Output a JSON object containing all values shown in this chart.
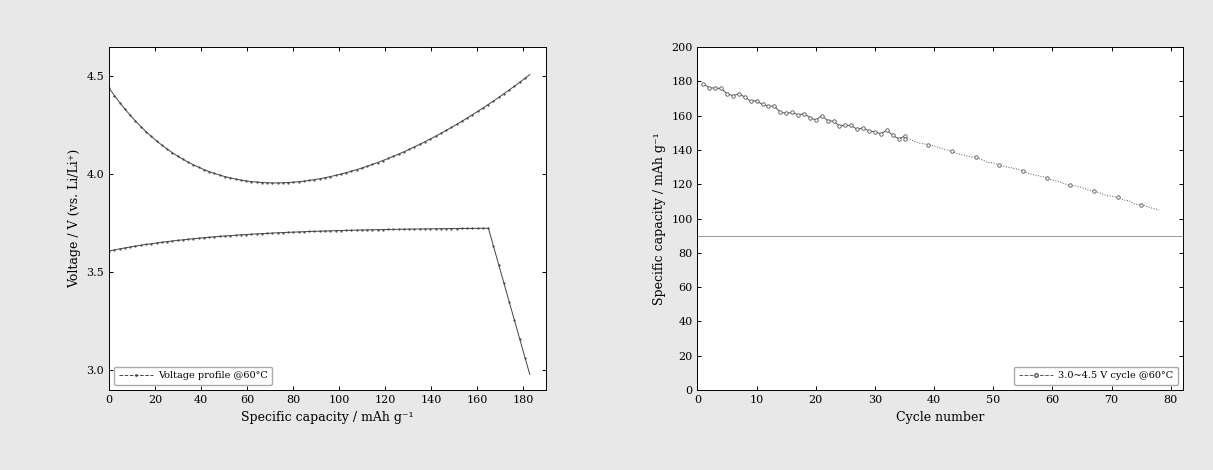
{
  "bg_color": "#e8e8e8",
  "plot_bg": "#ffffff",
  "left": {
    "xlabel": "Specific capacity / mAh g⁻¹",
    "ylabel": "Voltage / V (vs. Li/Li⁺)",
    "xlim": [
      0,
      190
    ],
    "ylim": [
      2.9,
      4.65
    ],
    "xticks": [
      0,
      20,
      40,
      60,
      80,
      100,
      120,
      140,
      160,
      180
    ],
    "yticks": [
      3.0,
      3.5,
      4.0,
      4.5
    ],
    "legend_label": "Voltage profile @60°C",
    "line_color": "#444444"
  },
  "right": {
    "xlabel": "Cycle number",
    "ylabel": "Specific capacity / mAh g⁻¹",
    "xlim": [
      0,
      82
    ],
    "ylim": [
      0,
      200
    ],
    "xticks": [
      0,
      10,
      20,
      30,
      40,
      50,
      60,
      70,
      80
    ],
    "yticks": [
      0,
      20,
      40,
      60,
      80,
      100,
      120,
      140,
      160,
      180,
      200
    ],
    "legend_label": "3.0~4.5 V cycle @60°C",
    "hline_y": 90,
    "line_color": "#555555"
  },
  "font_size": 8,
  "label_font_size": 9,
  "tick_font_size": 8
}
